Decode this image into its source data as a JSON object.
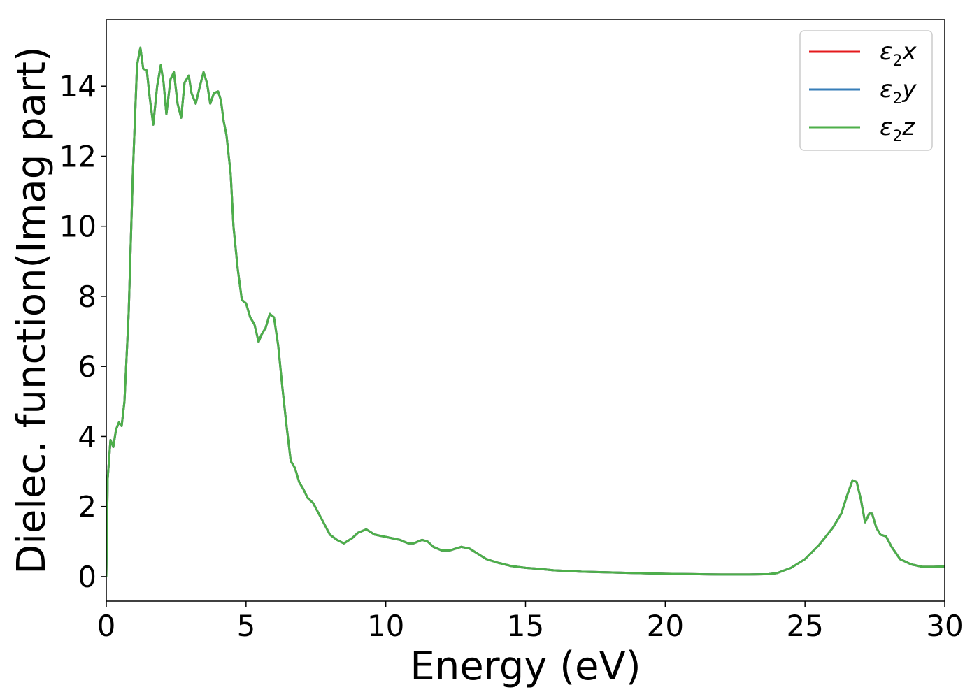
{
  "chart_data": {
    "type": "line",
    "title": "",
    "xlabel": "Energy (eV)",
    "ylabel": "Dielec. function(Imag part)",
    "xlim": [
      0,
      30
    ],
    "ylim": [
      -0.7,
      15.9
    ],
    "xticks": [
      0,
      5,
      10,
      15,
      20,
      25,
      30
    ],
    "yticks": [
      0,
      2,
      4,
      6,
      8,
      10,
      12,
      14
    ],
    "grid": false,
    "legend_position": "top-right",
    "x": [
      0,
      0.05,
      0.15,
      0.25,
      0.35,
      0.45,
      0.55,
      0.65,
      0.8,
      0.95,
      1.1,
      1.22,
      1.32,
      1.45,
      1.55,
      1.68,
      1.82,
      1.95,
      2.05,
      2.15,
      2.3,
      2.42,
      2.55,
      2.68,
      2.8,
      2.95,
      3.05,
      3.2,
      3.35,
      3.48,
      3.6,
      3.72,
      3.85,
      4.0,
      4.1,
      4.2,
      4.3,
      4.45,
      4.55,
      4.7,
      4.85,
      5.0,
      5.15,
      5.3,
      5.45,
      5.55,
      5.7,
      5.85,
      6.0,
      6.15,
      6.3,
      6.45,
      6.6,
      6.75,
      6.9,
      7.05,
      7.2,
      7.4,
      7.6,
      7.8,
      8.0,
      8.25,
      8.5,
      8.8,
      9.0,
      9.3,
      9.6,
      9.9,
      10.2,
      10.5,
      10.8,
      11.0,
      11.3,
      11.5,
      11.7,
      12.0,
      12.3,
      12.7,
      13.0,
      13.3,
      13.6,
      14.0,
      14.5,
      15.0,
      15.5,
      16.0,
      16.5,
      17.0,
      18.0,
      19.0,
      20.0,
      21.0,
      22.0,
      23.0,
      23.7,
      24.0,
      24.5,
      25.0,
      25.5,
      26.0,
      26.3,
      26.5,
      26.7,
      26.85,
      27.0,
      27.15,
      27.3,
      27.4,
      27.55,
      27.7,
      27.9,
      28.1,
      28.4,
      28.8,
      29.2,
      29.6,
      30.0
    ],
    "series": [
      {
        "name": "ε2x",
        "values": [
          0,
          2.8,
          3.9,
          3.7,
          4.2,
          4.4,
          4.3,
          5.0,
          7.5,
          11.5,
          14.6,
          15.1,
          14.5,
          14.45,
          13.7,
          12.9,
          14.0,
          14.6,
          14.1,
          13.2,
          14.2,
          14.4,
          13.5,
          13.1,
          14.1,
          14.3,
          13.8,
          13.5,
          14.0,
          14.4,
          14.1,
          13.5,
          13.8,
          13.85,
          13.6,
          13.0,
          12.6,
          11.5,
          10.0,
          8.8,
          7.9,
          7.8,
          7.4,
          7.2,
          6.7,
          6.9,
          7.1,
          7.5,
          7.4,
          6.6,
          5.4,
          4.3,
          3.3,
          3.1,
          2.7,
          2.5,
          2.25,
          2.1,
          1.8,
          1.5,
          1.2,
          1.05,
          0.95,
          1.1,
          1.25,
          1.35,
          1.2,
          1.15,
          1.1,
          1.05,
          0.95,
          0.95,
          1.05,
          1.0,
          0.85,
          0.75,
          0.75,
          0.85,
          0.8,
          0.65,
          0.5,
          0.4,
          0.3,
          0.25,
          0.22,
          0.18,
          0.16,
          0.14,
          0.12,
          0.1,
          0.08,
          0.07,
          0.06,
          0.06,
          0.07,
          0.1,
          0.25,
          0.5,
          0.9,
          1.4,
          1.8,
          2.3,
          2.75,
          2.7,
          2.2,
          1.55,
          1.8,
          1.8,
          1.4,
          1.2,
          1.15,
          0.85,
          0.5,
          0.35,
          0.28,
          0.28,
          0.29
        ]
      },
      {
        "name": "ε2y",
        "values": [
          0,
          2.8,
          3.9,
          3.7,
          4.2,
          4.4,
          4.3,
          5.0,
          7.5,
          11.5,
          14.6,
          15.1,
          14.5,
          14.45,
          13.7,
          12.9,
          14.0,
          14.6,
          14.1,
          13.2,
          14.2,
          14.4,
          13.5,
          13.1,
          14.1,
          14.3,
          13.8,
          13.5,
          14.0,
          14.4,
          14.1,
          13.5,
          13.8,
          13.85,
          13.6,
          13.0,
          12.6,
          11.5,
          10.0,
          8.8,
          7.9,
          7.8,
          7.4,
          7.2,
          6.7,
          6.9,
          7.1,
          7.5,
          7.4,
          6.6,
          5.4,
          4.3,
          3.3,
          3.1,
          2.7,
          2.5,
          2.25,
          2.1,
          1.8,
          1.5,
          1.2,
          1.05,
          0.95,
          1.1,
          1.25,
          1.35,
          1.2,
          1.15,
          1.1,
          1.05,
          0.95,
          0.95,
          1.05,
          1.0,
          0.85,
          0.75,
          0.75,
          0.85,
          0.8,
          0.65,
          0.5,
          0.4,
          0.3,
          0.25,
          0.22,
          0.18,
          0.16,
          0.14,
          0.12,
          0.1,
          0.08,
          0.07,
          0.06,
          0.06,
          0.07,
          0.1,
          0.25,
          0.5,
          0.9,
          1.4,
          1.8,
          2.3,
          2.75,
          2.7,
          2.2,
          1.55,
          1.8,
          1.8,
          1.4,
          1.2,
          1.15,
          0.85,
          0.5,
          0.35,
          0.28,
          0.28,
          0.29
        ]
      },
      {
        "name": "ε2z",
        "values": [
          0,
          2.8,
          3.9,
          3.7,
          4.2,
          4.4,
          4.3,
          5.0,
          7.5,
          11.5,
          14.6,
          15.1,
          14.5,
          14.45,
          13.7,
          12.9,
          14.0,
          14.6,
          14.1,
          13.2,
          14.2,
          14.4,
          13.5,
          13.1,
          14.1,
          14.3,
          13.8,
          13.5,
          14.0,
          14.4,
          14.1,
          13.5,
          13.8,
          13.85,
          13.6,
          13.0,
          12.6,
          11.5,
          10.0,
          8.8,
          7.9,
          7.8,
          7.4,
          7.2,
          6.7,
          6.9,
          7.1,
          7.5,
          7.4,
          6.6,
          5.4,
          4.3,
          3.3,
          3.1,
          2.7,
          2.5,
          2.25,
          2.1,
          1.8,
          1.5,
          1.2,
          1.05,
          0.95,
          1.1,
          1.25,
          1.35,
          1.2,
          1.15,
          1.1,
          1.05,
          0.95,
          0.95,
          1.05,
          1.0,
          0.85,
          0.75,
          0.75,
          0.85,
          0.8,
          0.65,
          0.5,
          0.4,
          0.3,
          0.25,
          0.22,
          0.18,
          0.16,
          0.14,
          0.12,
          0.1,
          0.08,
          0.07,
          0.06,
          0.06,
          0.07,
          0.1,
          0.25,
          0.5,
          0.9,
          1.4,
          1.8,
          2.3,
          2.75,
          2.7,
          2.2,
          1.55,
          1.8,
          1.8,
          1.4,
          1.2,
          1.15,
          0.85,
          0.5,
          0.35,
          0.28,
          0.28,
          0.29
        ]
      }
    ],
    "legend": [
      {
        "base": "ε",
        "sub": "2",
        "suffix": "x",
        "color": "#e41a1c"
      },
      {
        "base": "ε",
        "sub": "2",
        "suffix": "y",
        "color": "#377eb8"
      },
      {
        "base": "ε",
        "sub": "2",
        "suffix": "z",
        "color": "#4daf4a"
      }
    ]
  }
}
